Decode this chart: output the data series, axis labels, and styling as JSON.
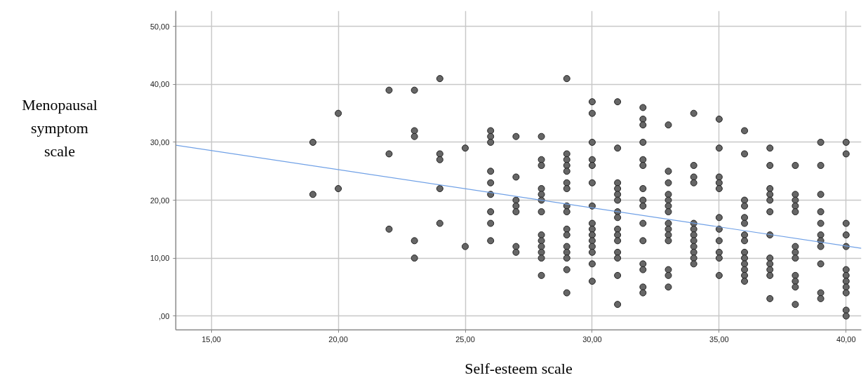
{
  "chart_data": {
    "type": "scatter",
    "xlabel": "Self-esteem scale",
    "ylabel": "Menopausal symptom scale",
    "xlim": [
      13.6,
      40.6
    ],
    "ylim": [
      -2.4,
      52.7
    ],
    "xticks": [
      {
        "value": 15,
        "label": "15,00"
      },
      {
        "value": 20,
        "label": "20,00"
      },
      {
        "value": 25,
        "label": "25,00"
      },
      {
        "value": 30,
        "label": "30,00"
      },
      {
        "value": 35,
        "label": "35,00"
      },
      {
        "value": 40,
        "label": "40,00"
      }
    ],
    "yticks": [
      {
        "value": 0,
        "label": ",00"
      },
      {
        "value": 10,
        "label": "10,00"
      },
      {
        "value": 20,
        "label": "20,00"
      },
      {
        "value": 30,
        "label": "30,00"
      },
      {
        "value": 40,
        "label": "40,00"
      },
      {
        "value": 50,
        "label": "50,00"
      }
    ],
    "grid": true,
    "series": [
      {
        "marker": "circle",
        "color": "#666666",
        "x": [
          19,
          19,
          20,
          20,
          22,
          22,
          22,
          23,
          23,
          23,
          23,
          23,
          24,
          24,
          24,
          24,
          24,
          25,
          25,
          26,
          26,
          26,
          26,
          26,
          26,
          26,
          26,
          26,
          27,
          27,
          27,
          27,
          27,
          27,
          27,
          28,
          28,
          28,
          28,
          28,
          28,
          28,
          28,
          28,
          28,
          28,
          28,
          28,
          29,
          29,
          29,
          29,
          29,
          29,
          29,
          29,
          29,
          29,
          29,
          29,
          29,
          29,
          29,
          29,
          30,
          30,
          30,
          30,
          30,
          30,
          30,
          30,
          30,
          30,
          30,
          30,
          30,
          30,
          30,
          31,
          31,
          31,
          31,
          31,
          31,
          31,
          31,
          31,
          31,
          31,
          31,
          31,
          31,
          31,
          32,
          32,
          32,
          32,
          32,
          32,
          32,
          32,
          32,
          32,
          32,
          32,
          32,
          32,
          32,
          33,
          33,
          33,
          33,
          33,
          33,
          33,
          33,
          33,
          33,
          33,
          33,
          33,
          33,
          34,
          34,
          34,
          34,
          34,
          34,
          34,
          34,
          34,
          34,
          34,
          34,
          35,
          35,
          35,
          35,
          35,
          35,
          35,
          35,
          35,
          35,
          35,
          36,
          36,
          36,
          36,
          36,
          36,
          36,
          36,
          36,
          36,
          36,
          36,
          36,
          36,
          37,
          37,
          37,
          37,
          37,
          37,
          37,
          37,
          37,
          37,
          37,
          37,
          38,
          38,
          38,
          38,
          38,
          38,
          38,
          38,
          38,
          38,
          38,
          38,
          39,
          39,
          39,
          39,
          39,
          39,
          39,
          39,
          39,
          39,
          39,
          40,
          40,
          40,
          40,
          40,
          40,
          40,
          40,
          40,
          40,
          40,
          40
        ],
        "values": [
          30,
          21,
          35,
          22,
          39,
          28,
          15,
          39,
          32,
          31,
          13,
          10,
          41,
          28,
          27,
          22,
          16,
          29,
          12,
          32,
          31,
          30,
          25,
          23,
          21,
          18,
          16,
          13,
          31,
          24,
          20,
          19,
          18,
          12,
          11,
          31,
          27,
          26,
          22,
          21,
          20,
          18,
          14,
          13,
          12,
          11,
          10,
          7,
          41,
          28,
          27,
          26,
          25,
          23,
          22,
          19,
          18,
          15,
          14,
          12,
          11,
          10,
          8,
          4,
          37,
          35,
          30,
          27,
          26,
          23,
          19,
          16,
          15,
          14,
          13,
          12,
          11,
          9,
          6,
          37,
          29,
          23,
          22,
          21,
          20,
          18,
          17,
          15,
          14,
          13,
          11,
          10,
          7,
          2,
          36,
          34,
          33,
          30,
          27,
          26,
          22,
          20,
          19,
          16,
          13,
          9,
          8,
          5,
          4,
          33,
          25,
          23,
          21,
          20,
          19,
          18,
          16,
          15,
          14,
          13,
          8,
          7,
          5,
          35,
          26,
          24,
          23,
          16,
          15,
          14,
          13,
          12,
          11,
          10,
          9,
          34,
          29,
          24,
          23,
          22,
          17,
          15,
          13,
          11,
          10,
          7,
          32,
          28,
          20,
          19,
          17,
          16,
          14,
          13,
          11,
          10,
          9,
          8,
          7,
          6,
          29,
          26,
          22,
          21,
          20,
          18,
          14,
          10,
          9,
          8,
          7,
          3,
          26,
          21,
          20,
          19,
          18,
          12,
          11,
          10,
          7,
          6,
          5,
          2,
          30,
          26,
          21,
          18,
          16,
          14,
          13,
          12,
          9,
          4,
          3,
          30,
          28,
          16,
          14,
          12,
          8,
          7,
          6,
          5,
          4,
          1,
          0
        ]
      },
      {
        "type": "line",
        "color": "#6fa0e6",
        "x": [
          13.6,
          40.6
        ],
        "values": [
          29.5,
          11.7
        ]
      }
    ]
  }
}
